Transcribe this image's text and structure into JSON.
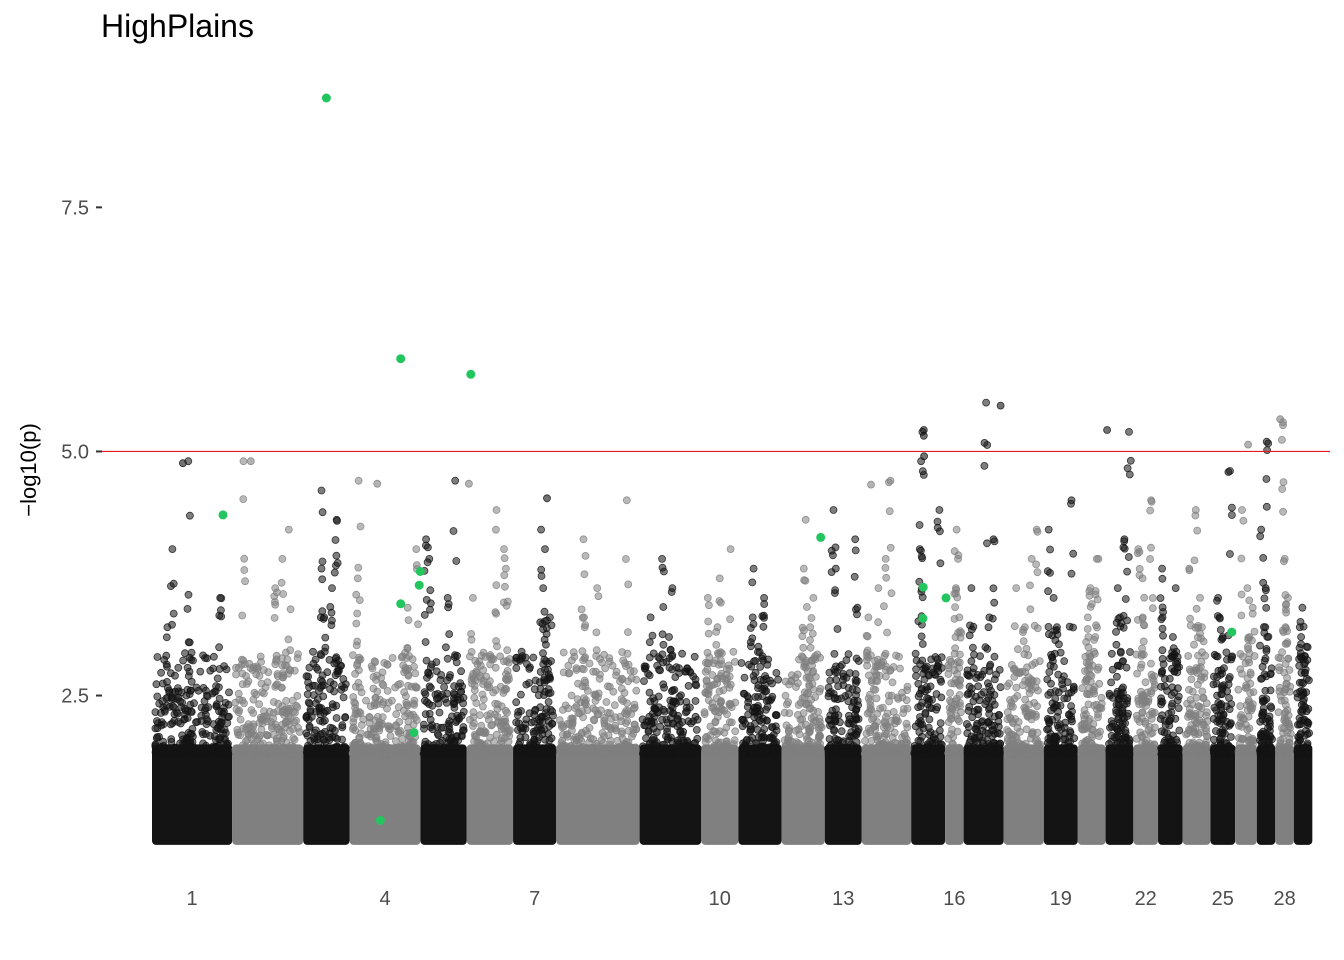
{
  "chart_data": {
    "type": "scatter",
    "subtype": "manhattan",
    "title": "HighPlains",
    "xlabel": "",
    "ylabel": "−log10(p)",
    "ylim": [
      0.8,
      9.2
    ],
    "yticks": [
      2.5,
      5.0,
      7.5
    ],
    "ytick_labels": [
      "2.5",
      "5.0",
      "7.5"
    ],
    "xtick_labels": [
      "1",
      "4",
      "7",
      "10",
      "13",
      "16",
      "19",
      "22",
      "25",
      "28"
    ],
    "xtick_chromosomes": [
      1,
      4,
      7,
      10,
      13,
      16,
      19,
      22,
      25,
      28
    ],
    "threshold": 5.0,
    "threshold_color": "#e41a1c",
    "grid": false,
    "colors": {
      "odd_chrom": "#141414",
      "even_chrom": "#808080",
      "highlight": "#22c55e"
    },
    "chromosomes": [
      {
        "chr": 1,
        "start": 0.0,
        "end": 2.6,
        "peaks": [
          4.9,
          4.0,
          3.5,
          3.2
        ]
      },
      {
        "chr": 2,
        "start": 2.6,
        "end": 4.9,
        "peaks": [
          4.9,
          4.2,
          3.9,
          3.6
        ]
      },
      {
        "chr": 3,
        "start": 4.9,
        "end": 6.4,
        "peaks": [
          4.6,
          4.3,
          3.6,
          3.3
        ]
      },
      {
        "chr": 4,
        "start": 6.4,
        "end": 8.7,
        "peaks": [
          4.7,
          4.0,
          3.7,
          3.4
        ]
      },
      {
        "chr": 5,
        "start": 8.7,
        "end": 10.2,
        "peaks": [
          4.7,
          4.1,
          3.9,
          3.5
        ]
      },
      {
        "chr": 6,
        "start": 10.2,
        "end": 11.7,
        "peaks": [
          4.4,
          4.0,
          3.8,
          3.5
        ]
      },
      {
        "chr": 7,
        "start": 11.7,
        "end": 13.1,
        "peaks": [
          4.2,
          4.0,
          3.6,
          3.3
        ]
      },
      {
        "chr": 8,
        "start": 13.1,
        "end": 15.8,
        "peaks": [
          4.5,
          4.1,
          3.6,
          3.3
        ]
      },
      {
        "chr": 9,
        "start": 15.8,
        "end": 17.8,
        "peaks": [
          3.9,
          3.6,
          3.3,
          3.1
        ]
      },
      {
        "chr": 10,
        "start": 17.8,
        "end": 19.0,
        "peaks": [
          4.0,
          3.7,
          3.5,
          3.2
        ]
      },
      {
        "chr": 11,
        "start": 19.0,
        "end": 20.4,
        "peaks": [
          3.8,
          3.5,
          3.3,
          3.0
        ]
      },
      {
        "chr": 12,
        "start": 20.4,
        "end": 21.8,
        "peaks": [
          4.3,
          3.8,
          3.5,
          3.2
        ]
      },
      {
        "chr": 13,
        "start": 21.8,
        "end": 23.0,
        "peaks": [
          4.4,
          4.1,
          3.8,
          3.4
        ]
      },
      {
        "chr": 14,
        "start": 23.0,
        "end": 24.6,
        "peaks": [
          4.7,
          3.9,
          3.6,
          3.3
        ]
      },
      {
        "chr": 15,
        "start": 24.6,
        "end": 25.7,
        "peaks": [
          5.2,
          4.9,
          4.4,
          4.0
        ]
      },
      {
        "chr": 16,
        "start": 25.7,
        "end": 26.3,
        "peaks": [
          4.2,
          3.9,
          3.6,
          3.3
        ]
      },
      {
        "chr": 17,
        "start": 26.3,
        "end": 27.6,
        "peaks": [
          5.5,
          4.1,
          3.6,
          3.3
        ]
      },
      {
        "chr": 18,
        "start": 27.6,
        "end": 28.9,
        "peaks": [
          4.2,
          3.9,
          3.6,
          3.2
        ]
      },
      {
        "chr": 19,
        "start": 28.9,
        "end": 30.0,
        "peaks": [
          4.5,
          4.2,
          3.5,
          3.2
        ]
      },
      {
        "chr": 20,
        "start": 30.0,
        "end": 30.9,
        "peaks": [
          3.9,
          3.6,
          3.3,
          3.1
        ]
      },
      {
        "chr": 21,
        "start": 30.9,
        "end": 31.8,
        "peaks": [
          5.2,
          4.1,
          3.6,
          3.3
        ]
      },
      {
        "chr": 22,
        "start": 31.8,
        "end": 32.6,
        "peaks": [
          4.5,
          4.0,
          3.7,
          3.3
        ]
      },
      {
        "chr": 23,
        "start": 32.6,
        "end": 33.4,
        "peaks": [
          3.8,
          3.6,
          3.3,
          3.1
        ]
      },
      {
        "chr": 24,
        "start": 33.4,
        "end": 34.3,
        "peaks": [
          4.4,
          3.8,
          3.5,
          3.2
        ]
      },
      {
        "chr": 25,
        "start": 34.3,
        "end": 35.1,
        "peaks": [
          4.8,
          3.5,
          3.3,
          3.1
        ]
      },
      {
        "chr": 26,
        "start": 35.1,
        "end": 35.8,
        "peaks": [
          4.4,
          3.6,
          3.4,
          3.1
        ]
      },
      {
        "chr": 27,
        "start": 35.8,
        "end": 36.4,
        "peaks": [
          5.1,
          4.2,
          3.6,
          3.2
        ]
      },
      {
        "chr": 28,
        "start": 36.4,
        "end": 37.0,
        "peaks": [
          5.3,
          3.9,
          3.5,
          3.2
        ]
      },
      {
        "chr": 29,
        "start": 37.0,
        "end": 37.6,
        "peaks": [
          3.4,
          3.2,
          3.1,
          3.0
        ]
      }
    ],
    "notable_points": [
      {
        "x": 3.2,
        "y": 4.9
      },
      {
        "x": 7.3,
        "y": 4.67
      },
      {
        "x": 10.27,
        "y": 4.67
      },
      {
        "x": 12.8,
        "y": 4.52
      },
      {
        "x": 23.3,
        "y": 4.66
      },
      {
        "x": 25.01,
        "y": 5.22
      },
      {
        "x": 25.01,
        "y": 5.16
      },
      {
        "x": 25.02,
        "y": 4.95
      },
      {
        "x": 27.5,
        "y": 5.47
      },
      {
        "x": 30.95,
        "y": 5.22
      },
      {
        "x": 35.52,
        "y": 5.07
      },
      {
        "x": 36.56,
        "y": 5.33
      },
      {
        "x": 34.88,
        "y": 4.79
      },
      {
        "x": 1.0,
        "y": 4.88
      }
    ],
    "highlight_points": [
      {
        "x": 5.65,
        "y": 8.62
      },
      {
        "x": 8.06,
        "y": 5.95
      },
      {
        "x": 10.33,
        "y": 5.79
      },
      {
        "x": 2.3,
        "y": 4.35
      },
      {
        "x": 8.69,
        "y": 3.77
      },
      {
        "x": 8.66,
        "y": 3.63
      },
      {
        "x": 8.06,
        "y": 3.44
      },
      {
        "x": 8.49,
        "y": 2.12
      },
      {
        "x": 7.4,
        "y": 1.22
      },
      {
        "x": 21.67,
        "y": 4.12
      },
      {
        "x": 24.99,
        "y": 3.61
      },
      {
        "x": 24.98,
        "y": 3.29
      },
      {
        "x": 25.73,
        "y": 3.5
      },
      {
        "x": 34.99,
        "y": 3.15
      }
    ]
  }
}
